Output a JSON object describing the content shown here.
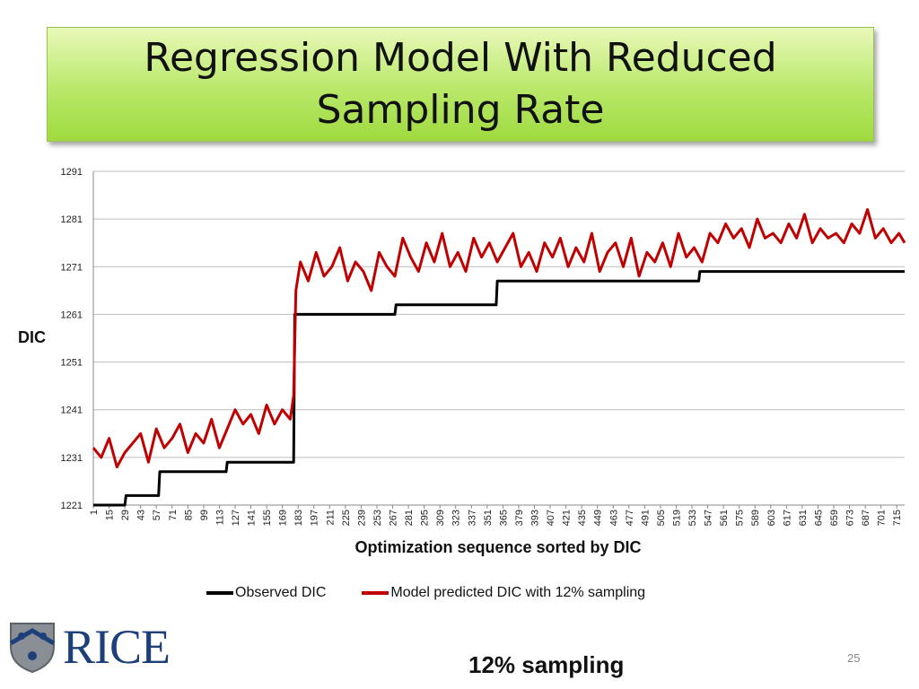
{
  "slide": {
    "title": "Regression Model With Reduced Sampling Rate",
    "page_number": "25",
    "footnote": "12% sampling",
    "logo_text": "RICE"
  },
  "chart_data": {
    "type": "line",
    "title": "",
    "xlabel": "Optimization sequence sorted by DIC",
    "ylabel": "DIC",
    "ylim": [
      1221,
      1291
    ],
    "yticks": [
      1221,
      1231,
      1241,
      1251,
      1261,
      1271,
      1281,
      1291
    ],
    "x_range": [
      1,
      722
    ],
    "x_tick_labels": [
      "1",
      "15",
      "29",
      "43",
      "57",
      "71",
      "85",
      "99",
      "113",
      "127",
      "141",
      "155",
      "169",
      "183",
      "197",
      "211",
      "225",
      "239",
      "253",
      "267",
      "281",
      "295",
      "309",
      "323",
      "337",
      "351",
      "365",
      "379",
      "393",
      "407",
      "421",
      "435",
      "449",
      "463",
      "477",
      "491",
      "505",
      "519",
      "533",
      "547",
      "561",
      "575",
      "589",
      "603",
      "617",
      "631",
      "645",
      "659",
      "673",
      "687",
      "701",
      "715"
    ],
    "grid": true,
    "legend_position": "bottom",
    "series": [
      {
        "name": "Observed DIC",
        "color": "#000000",
        "x": [
          1,
          29,
          30,
          59,
          60,
          119,
          120,
          179,
          180,
          269,
          270,
          359,
          360,
          539,
          540,
          722
        ],
        "y": [
          1221,
          1221,
          1223,
          1223,
          1228,
          1228,
          1230,
          1230,
          1261,
          1261,
          1263,
          1263,
          1268,
          1268,
          1270,
          1270
        ]
      },
      {
        "name": "Model predicted DIC with 12% sampling",
        "color": "#c00000",
        "x": [
          1,
          8,
          15,
          22,
          29,
          36,
          43,
          50,
          57,
          64,
          71,
          78,
          85,
          92,
          99,
          106,
          113,
          120,
          127,
          134,
          141,
          148,
          155,
          162,
          169,
          176,
          179,
          181,
          185,
          192,
          199,
          206,
          213,
          220,
          227,
          234,
          241,
          248,
          255,
          262,
          269,
          276,
          283,
          290,
          297,
          304,
          311,
          318,
          325,
          332,
          339,
          346,
          353,
          360,
          367,
          374,
          381,
          388,
          395,
          402,
          409,
          416,
          423,
          430,
          437,
          444,
          451,
          458,
          465,
          472,
          479,
          486,
          493,
          500,
          507,
          514,
          521,
          528,
          535,
          542,
          549,
          556,
          563,
          570,
          577,
          584,
          591,
          598,
          605,
          612,
          619,
          626,
          633,
          640,
          647,
          654,
          661,
          668,
          675,
          682,
          689,
          696,
          703,
          710,
          717,
          722
        ],
        "y": [
          1233,
          1231,
          1235,
          1229,
          1232,
          1234,
          1236,
          1230,
          1237,
          1233,
          1235,
          1238,
          1232,
          1236,
          1234,
          1239,
          1233,
          1237,
          1241,
          1238,
          1240,
          1236,
          1242,
          1238,
          1241,
          1239,
          1244,
          1266,
          1272,
          1268,
          1274,
          1269,
          1271,
          1275,
          1268,
          1272,
          1270,
          1266,
          1274,
          1271,
          1269,
          1277,
          1273,
          1270,
          1276,
          1272,
          1278,
          1271,
          1274,
          1270,
          1277,
          1273,
          1276,
          1272,
          1275,
          1278,
          1271,
          1274,
          1270,
          1276,
          1273,
          1277,
          1271,
          1275,
          1272,
          1278,
          1270,
          1274,
          1276,
          1271,
          1277,
          1269,
          1274,
          1272,
          1276,
          1271,
          1278,
          1273,
          1275,
          1272,
          1278,
          1276,
          1280,
          1277,
          1279,
          1275,
          1281,
          1277,
          1278,
          1276,
          1280,
          1277,
          1282,
          1276,
          1279,
          1277,
          1278,
          1276,
          1280,
          1278,
          1283,
          1277,
          1279,
          1276,
          1278,
          1276
        ]
      }
    ]
  },
  "icons": {
    "logo": "rice-shield-icon"
  }
}
